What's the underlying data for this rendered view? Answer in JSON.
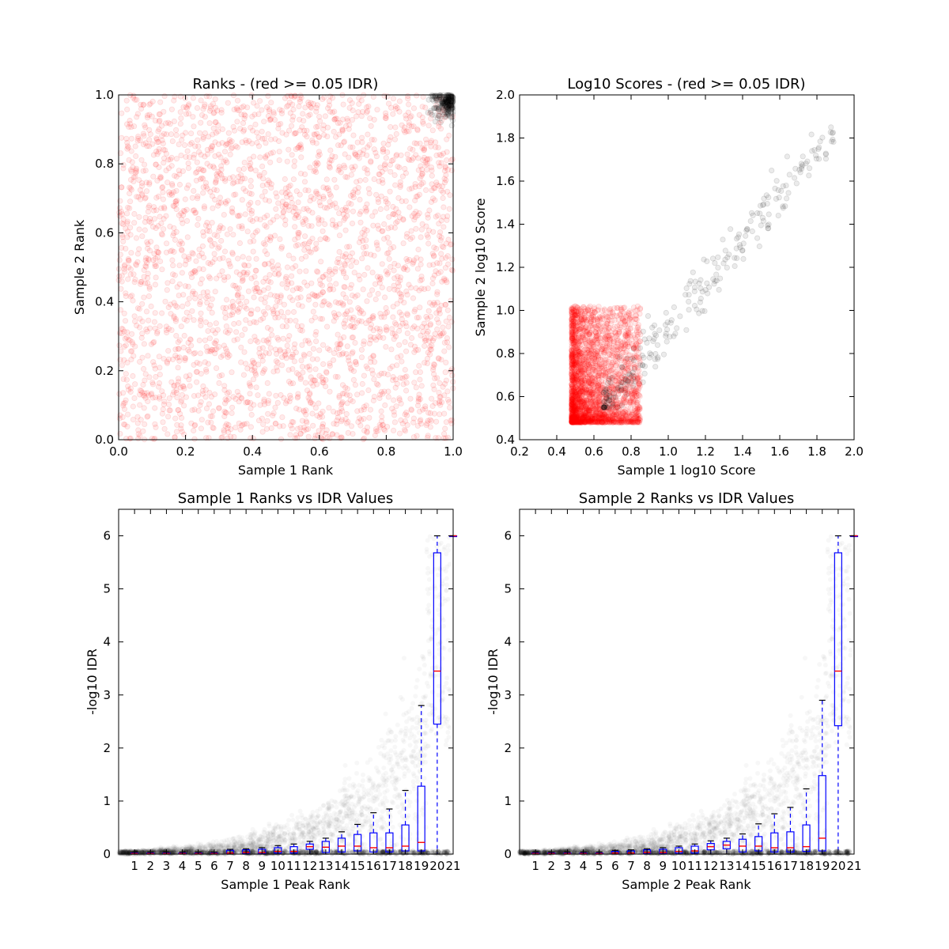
{
  "chart_data": [
    {
      "type": "scatter",
      "title": "Ranks - (red >= 0.05 IDR)",
      "xlabel": "Sample 1 Rank",
      "ylabel": "Sample 2 Rank",
      "xlim": [
        0.0,
        1.0
      ],
      "ylim": [
        0.0,
        1.0
      ],
      "xticks": [
        "0.0",
        "0.2",
        "0.4",
        "0.6",
        "0.8",
        "1.0"
      ],
      "yticks": [
        "0.0",
        "0.2",
        "0.4",
        "0.6",
        "0.8",
        "1.0"
      ],
      "colors": {
        "red": "#ff0000",
        "black": "#000000"
      },
      "series": [
        {
          "color": "red",
          "distribution": "uniform",
          "x_range": [
            0.0,
            1.0
          ],
          "y_range": [
            0.0,
            1.0
          ],
          "count": 2800
        },
        {
          "color": "black",
          "distribution": "cluster",
          "x_range": [
            0.88,
            1.0
          ],
          "y_range": [
            0.88,
            1.0
          ],
          "count": 220
        }
      ]
    },
    {
      "type": "scatter",
      "title": "Log10 Scores - (red >= 0.05 IDR)",
      "xlabel": "Sample 1 log10 Score",
      "ylabel": "Sample 2 log10 Score",
      "xlim": [
        0.2,
        2.0
      ],
      "ylim": [
        0.4,
        2.0
      ],
      "xticks": [
        "0.2",
        "0.4",
        "0.6",
        "0.8",
        "1.0",
        "1.2",
        "1.4",
        "1.6",
        "1.8",
        "2.0"
      ],
      "yticks": [
        "0.4",
        "0.6",
        "0.8",
        "1.0",
        "1.2",
        "1.4",
        "1.6",
        "1.8",
        "2.0"
      ],
      "colors": {
        "red": "#ff0000",
        "black": "#000000"
      },
      "series": [
        {
          "color": "red",
          "distribution": "cluster",
          "x_range": [
            0.48,
            0.85
          ],
          "y_range": [
            0.48,
            1.02
          ],
          "count": 2500
        },
        {
          "color": "black",
          "distribution": "diagonal",
          "x_range": [
            0.65,
            1.9
          ],
          "y_range": [
            0.55,
            1.85
          ],
          "count": 260
        }
      ]
    },
    {
      "type": "box",
      "title": "Sample 1 Ranks vs IDR Values",
      "xlabel": "Sample 1 Peak Rank",
      "ylabel": "-log10 IDR",
      "xlim": [
        0,
        21
      ],
      "ylim": [
        0,
        6.5
      ],
      "categories": [
        "1",
        "2",
        "3",
        "4",
        "5",
        "6",
        "7",
        "8",
        "9",
        "10",
        "11",
        "12",
        "13",
        "14",
        "15",
        "16",
        "17",
        "18",
        "19",
        "20",
        "21"
      ],
      "yticks": [
        "0",
        "1",
        "2",
        "3",
        "4",
        "5",
        "6"
      ],
      "colors": {
        "box": "#0000ff",
        "median": "#ff0000",
        "points": "#000000"
      },
      "boxes": [
        {
          "pos": 1,
          "lw": 0,
          "q1": 0.005,
          "med": 0.01,
          "q3": 0.02,
          "uw": 0.04
        },
        {
          "pos": 2,
          "lw": 0,
          "q1": 0.005,
          "med": 0.01,
          "q3": 0.02,
          "uw": 0.04
        },
        {
          "pos": 3,
          "lw": 0,
          "q1": 0.005,
          "med": 0.01,
          "q3": 0.02,
          "uw": 0.04
        },
        {
          "pos": 4,
          "lw": 0,
          "q1": 0.005,
          "med": 0.01,
          "q3": 0.02,
          "uw": 0.04
        },
        {
          "pos": 5,
          "lw": 0,
          "q1": 0.005,
          "med": 0.01,
          "q3": 0.02,
          "uw": 0.04
        },
        {
          "pos": 6,
          "lw": 0,
          "q1": 0.005,
          "med": 0.01,
          "q3": 0.02,
          "uw": 0.04
        },
        {
          "pos": 7,
          "lw": 0,
          "q1": 0.01,
          "med": 0.02,
          "q3": 0.07,
          "uw": 0.09
        },
        {
          "pos": 8,
          "lw": 0,
          "q1": 0.01,
          "med": 0.03,
          "q3": 0.08,
          "uw": 0.1
        },
        {
          "pos": 9,
          "lw": 0,
          "q1": 0.01,
          "med": 0.03,
          "q3": 0.09,
          "uw": 0.12
        },
        {
          "pos": 10,
          "lw": 0,
          "q1": 0.02,
          "med": 0.05,
          "q3": 0.12,
          "uw": 0.16
        },
        {
          "pos": 11,
          "lw": 0,
          "q1": 0.02,
          "med": 0.05,
          "q3": 0.14,
          "uw": 0.19
        },
        {
          "pos": 12,
          "lw": 0,
          "q1": 0.09,
          "med": 0.14,
          "q3": 0.19,
          "uw": 0.24
        },
        {
          "pos": 13,
          "lw": 0,
          "q1": 0.03,
          "med": 0.13,
          "q3": 0.24,
          "uw": 0.3
        },
        {
          "pos": 14,
          "lw": 0,
          "q1": 0.04,
          "med": 0.15,
          "q3": 0.3,
          "uw": 0.42
        },
        {
          "pos": 15,
          "lw": 0,
          "q1": 0.06,
          "med": 0.15,
          "q3": 0.37,
          "uw": 0.56
        },
        {
          "pos": 16,
          "lw": 0,
          "q1": 0.04,
          "med": 0.12,
          "q3": 0.4,
          "uw": 0.78
        },
        {
          "pos": 17,
          "lw": 0,
          "q1": 0.04,
          "med": 0.12,
          "q3": 0.4,
          "uw": 0.85
        },
        {
          "pos": 18,
          "lw": 0,
          "q1": 0.06,
          "med": 0.15,
          "q3": 0.55,
          "uw": 1.2
        },
        {
          "pos": 19,
          "lw": 0,
          "q1": 0.06,
          "med": 0.22,
          "q3": 1.28,
          "uw": 2.8
        },
        {
          "pos": 20,
          "lw": 0,
          "q1": 2.45,
          "med": 3.45,
          "q3": 5.68,
          "uw": 6.0
        },
        {
          "pos": 21,
          "lw": 6.0,
          "q1": 6.0,
          "med": 6.0,
          "q3": 6.0,
          "uw": 6.0
        }
      ]
    },
    {
      "type": "box",
      "title": "Sample 2 Ranks vs IDR Values",
      "xlabel": "Sample 2 Peak Rank",
      "ylabel": "-log10 IDR",
      "xlim": [
        0,
        21
      ],
      "ylim": [
        0,
        6.5
      ],
      "categories": [
        "1",
        "2",
        "3",
        "4",
        "5",
        "6",
        "7",
        "8",
        "9",
        "10",
        "11",
        "12",
        "13",
        "14",
        "15",
        "16",
        "17",
        "18",
        "19",
        "20",
        "21"
      ],
      "yticks": [
        "0",
        "1",
        "2",
        "3",
        "4",
        "5",
        "6"
      ],
      "colors": {
        "box": "#0000ff",
        "median": "#ff0000",
        "points": "#000000"
      },
      "boxes": [
        {
          "pos": 1,
          "lw": 0,
          "q1": 0.005,
          "med": 0.01,
          "q3": 0.02,
          "uw": 0.04
        },
        {
          "pos": 2,
          "lw": 0,
          "q1": 0.005,
          "med": 0.01,
          "q3": 0.02,
          "uw": 0.04
        },
        {
          "pos": 3,
          "lw": 0,
          "q1": 0.005,
          "med": 0.01,
          "q3": 0.02,
          "uw": 0.04
        },
        {
          "pos": 4,
          "lw": 0,
          "q1": 0.005,
          "med": 0.01,
          "q3": 0.02,
          "uw": 0.04
        },
        {
          "pos": 5,
          "lw": 0,
          "q1": 0.005,
          "med": 0.01,
          "q3": 0.02,
          "uw": 0.04
        },
        {
          "pos": 6,
          "lw": 0,
          "q1": 0.01,
          "med": 0.02,
          "q3": 0.05,
          "uw": 0.07
        },
        {
          "pos": 7,
          "lw": 0,
          "q1": 0.01,
          "med": 0.02,
          "q3": 0.06,
          "uw": 0.08
        },
        {
          "pos": 8,
          "lw": 0,
          "q1": 0.01,
          "med": 0.03,
          "q3": 0.08,
          "uw": 0.1
        },
        {
          "pos": 9,
          "lw": 0,
          "q1": 0.01,
          "med": 0.03,
          "q3": 0.09,
          "uw": 0.12
        },
        {
          "pos": 10,
          "lw": 0,
          "q1": 0.02,
          "med": 0.05,
          "q3": 0.12,
          "uw": 0.15
        },
        {
          "pos": 11,
          "lw": 0,
          "q1": 0.02,
          "med": 0.06,
          "q3": 0.15,
          "uw": 0.19
        },
        {
          "pos": 12,
          "lw": 0,
          "q1": 0.08,
          "med": 0.14,
          "q3": 0.2,
          "uw": 0.25
        },
        {
          "pos": 13,
          "lw": 0,
          "q1": 0.1,
          "med": 0.17,
          "q3": 0.24,
          "uw": 0.3
        },
        {
          "pos": 14,
          "lw": 0,
          "q1": 0.04,
          "med": 0.15,
          "q3": 0.28,
          "uw": 0.38
        },
        {
          "pos": 15,
          "lw": 0,
          "q1": 0.06,
          "med": 0.15,
          "q3": 0.33,
          "uw": 0.57
        },
        {
          "pos": 16,
          "lw": 0,
          "q1": 0.04,
          "med": 0.12,
          "q3": 0.4,
          "uw": 0.76
        },
        {
          "pos": 17,
          "lw": 0,
          "q1": 0.04,
          "med": 0.12,
          "q3": 0.42,
          "uw": 0.88
        },
        {
          "pos": 18,
          "lw": 0,
          "q1": 0.05,
          "med": 0.14,
          "q3": 0.55,
          "uw": 1.23
        },
        {
          "pos": 19,
          "lw": 0,
          "q1": 0.06,
          "med": 0.3,
          "q3": 1.48,
          "uw": 2.9
        },
        {
          "pos": 20,
          "lw": 0,
          "q1": 2.42,
          "med": 3.45,
          "q3": 5.68,
          "uw": 6.0
        },
        {
          "pos": 21,
          "lw": 6.0,
          "q1": 6.0,
          "med": 6.0,
          "q3": 6.0,
          "uw": 6.0
        }
      ]
    }
  ]
}
